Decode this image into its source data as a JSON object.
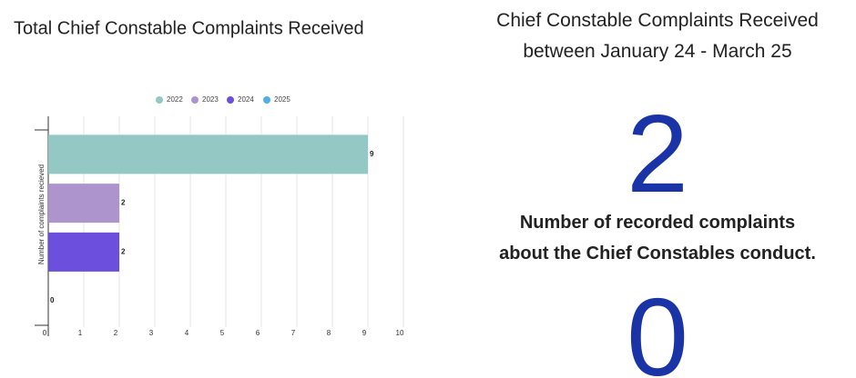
{
  "chart_data": {
    "type": "bar",
    "orientation": "horizontal",
    "title": "Total Chief Constable Complaints Received",
    "ylabel": "Number of complaints recieved",
    "categories": [
      null
    ],
    "series": [
      {
        "name": "2022",
        "color": "#93c8c4",
        "values": [
          9
        ]
      },
      {
        "name": "2023",
        "color": "#ad94cc",
        "values": [
          2
        ]
      },
      {
        "name": "2024",
        "color": "#6c4fdc",
        "values": [
          2
        ]
      },
      {
        "name": "2025",
        "color": "#4fb0e8",
        "values": [
          0
        ]
      }
    ],
    "xlim": [
      0,
      10
    ],
    "xticks": [
      0,
      1,
      2,
      3,
      4,
      5,
      6,
      7,
      8,
      9,
      10
    ],
    "grid": true,
    "legend": "top"
  },
  "panel": {
    "title": [
      "Chief Constable Complaints Received",
      "between January 24 - March 25"
    ],
    "count": 2,
    "caption": [
      "Number of recorded complaints",
      "about the Chief Constables conduct."
    ],
    "second_count": 0
  }
}
